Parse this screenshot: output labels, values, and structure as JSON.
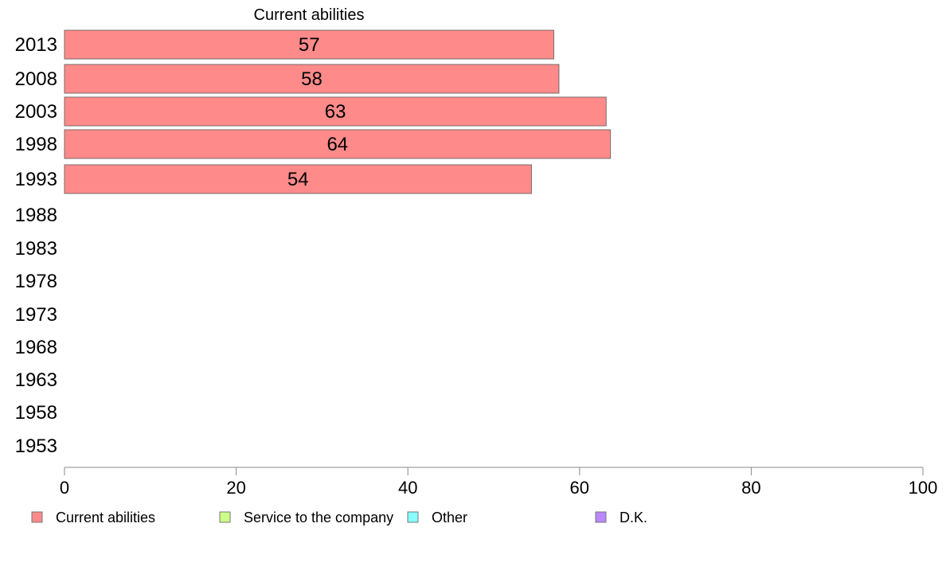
{
  "chart_data": {
    "type": "bar",
    "orientation": "horizontal",
    "categories": [
      "2013",
      "2008",
      "2003",
      "1998",
      "1993",
      "1988",
      "1983",
      "1978",
      "1973",
      "1968",
      "1963",
      "1958",
      "1953"
    ],
    "series": [
      {
        "name": "Current abilities",
        "values": [
          57,
          57.6,
          63.1,
          63.6,
          54.4,
          null,
          null,
          null,
          null,
          null,
          null,
          null,
          null
        ],
        "labels": [
          "57",
          "58",
          "63",
          "64",
          "54",
          "",
          "",
          "",
          "",
          "",
          "",
          "",
          ""
        ]
      }
    ],
    "title": "Current abilities",
    "xlim": [
      0,
      100
    ],
    "xticks": [
      0,
      20,
      40,
      60,
      80,
      100
    ],
    "grid": false,
    "legend": {
      "position": "bottom",
      "entries": [
        {
          "name": "Current abilities",
          "color": "#ff8a8a"
        },
        {
          "name": "Service to the company",
          "color": "#ccff88"
        },
        {
          "name": "Other",
          "color": "#88ffff"
        },
        {
          "name": "D.K.",
          "color": "#bb88ff"
        }
      ]
    },
    "colors": {
      "bar": "#ff8a8a",
      "bar_edge": "#7a6a6a",
      "axis": "#888888"
    }
  }
}
